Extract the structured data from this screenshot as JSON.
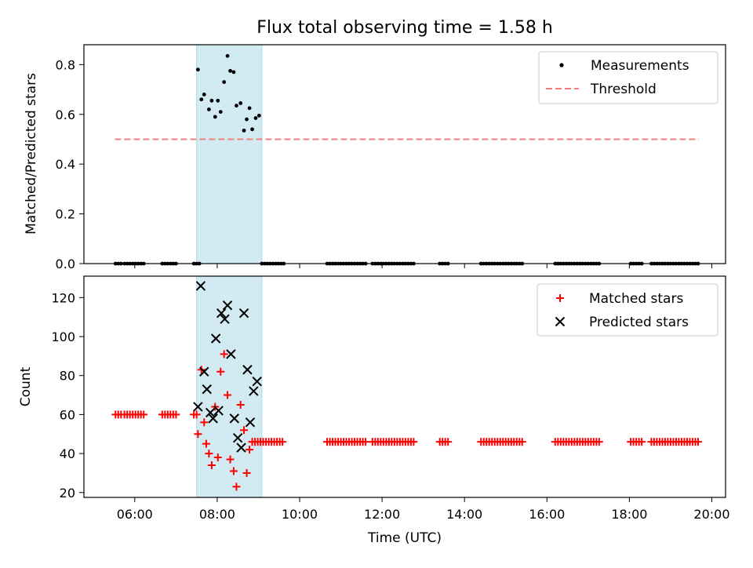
{
  "chart_data": {
    "title": "Flux total observing time = 1.58 h",
    "highlight_span": [
      "07:30",
      "09:05"
    ],
    "colors": {
      "highlight": "#add8e6",
      "threshold": "#f08080",
      "measurements": "#000000",
      "matched": "#ff0000",
      "predicted": "#000000"
    },
    "x_axis": {
      "label": "Time (UTC)",
      "range": [
        "04:46",
        "20:20"
      ],
      "ticks": [
        "06:00",
        "08:00",
        "10:00",
        "12:00",
        "14:00",
        "16:00",
        "18:00",
        "20:00"
      ]
    },
    "top": {
      "type": "scatter",
      "ylabel": "Matched/Predicted stars",
      "ylim": [
        0,
        0.88
      ],
      "yticks": [
        "0.0",
        "0.2",
        "0.4",
        "0.6",
        "0.8"
      ],
      "threshold": {
        "name": "Threshold",
        "value": 0.5,
        "x_range": [
          "05:31",
          "19:41"
        ]
      },
      "measurements": {
        "name": "Measurements",
        "points": [
          [
            "05:32",
            0
          ],
          [
            "05:36",
            0
          ],
          [
            "05:40",
            0
          ],
          [
            "05:45",
            0
          ],
          [
            "05:49",
            0
          ],
          [
            "05:53",
            0
          ],
          [
            "05:57",
            0
          ],
          [
            "06:01",
            0
          ],
          [
            "06:05",
            0
          ],
          [
            "06:09",
            0
          ],
          [
            "06:13",
            0
          ],
          [
            "06:40",
            0
          ],
          [
            "06:44",
            0
          ],
          [
            "06:48",
            0
          ],
          [
            "06:52",
            0
          ],
          [
            "06:56",
            0
          ],
          [
            "07:00",
            0
          ],
          [
            "07:26",
            0
          ],
          [
            "07:30",
            0
          ],
          [
            "07:34",
            0
          ],
          [
            "07:32",
            0.78
          ],
          [
            "07:37",
            0.66
          ],
          [
            "07:41",
            0.68
          ],
          [
            "07:48",
            0.62
          ],
          [
            "07:52",
            0.655
          ],
          [
            "07:57",
            0.59
          ],
          [
            "08:01",
            0.655
          ],
          [
            "08:05",
            0.61
          ],
          [
            "08:10",
            0.73
          ],
          [
            "08:15",
            0.835
          ],
          [
            "08:19",
            0.775
          ],
          [
            "08:24",
            0.77
          ],
          [
            "08:28",
            0.635
          ],
          [
            "08:34",
            0.645
          ],
          [
            "08:39",
            0.535
          ],
          [
            "08:43",
            0.58
          ],
          [
            "08:47",
            0.625
          ],
          [
            "08:51",
            0.54
          ],
          [
            "08:56",
            0.585
          ],
          [
            "09:01",
            0.595
          ],
          [
            "09:05",
            0
          ],
          [
            "09:09",
            0
          ],
          [
            "09:13",
            0
          ],
          [
            "09:17",
            0
          ],
          [
            "09:21",
            0
          ],
          [
            "09:25",
            0
          ],
          [
            "09:29",
            0
          ],
          [
            "09:33",
            0
          ],
          [
            "09:37",
            0
          ],
          [
            "10:40",
            0
          ],
          [
            "10:44",
            0
          ],
          [
            "10:48",
            0
          ],
          [
            "10:52",
            0
          ],
          [
            "10:56",
            0
          ],
          [
            "11:00",
            0
          ],
          [
            "11:04",
            0
          ],
          [
            "11:08",
            0
          ],
          [
            "11:12",
            0
          ],
          [
            "11:16",
            0
          ],
          [
            "11:20",
            0
          ],
          [
            "11:24",
            0
          ],
          [
            "11:28",
            0
          ],
          [
            "11:32",
            0
          ],
          [
            "11:36",
            0
          ],
          [
            "11:46",
            0
          ],
          [
            "11:50",
            0
          ],
          [
            "11:54",
            0
          ],
          [
            "11:58",
            0
          ],
          [
            "12:02",
            0
          ],
          [
            "12:06",
            0
          ],
          [
            "12:10",
            0
          ],
          [
            "12:14",
            0
          ],
          [
            "12:18",
            0
          ],
          [
            "12:22",
            0
          ],
          [
            "12:26",
            0
          ],
          [
            "12:30",
            0
          ],
          [
            "12:34",
            0
          ],
          [
            "12:38",
            0
          ],
          [
            "12:42",
            0
          ],
          [
            "12:46",
            0
          ],
          [
            "13:24",
            0
          ],
          [
            "13:28",
            0
          ],
          [
            "13:32",
            0
          ],
          [
            "13:36",
            0
          ],
          [
            "14:24",
            0
          ],
          [
            "14:28",
            0
          ],
          [
            "14:32",
            0
          ],
          [
            "14:36",
            0
          ],
          [
            "14:40",
            0
          ],
          [
            "14:44",
            0
          ],
          [
            "14:48",
            0
          ],
          [
            "14:52",
            0
          ],
          [
            "14:56",
            0
          ],
          [
            "15:00",
            0
          ],
          [
            "15:04",
            0
          ],
          [
            "15:08",
            0
          ],
          [
            "15:12",
            0
          ],
          [
            "15:16",
            0
          ],
          [
            "15:20",
            0
          ],
          [
            "15:24",
            0
          ],
          [
            "16:12",
            0
          ],
          [
            "16:16",
            0
          ],
          [
            "16:20",
            0
          ],
          [
            "16:24",
            0
          ],
          [
            "16:28",
            0
          ],
          [
            "16:32",
            0
          ],
          [
            "16:36",
            0
          ],
          [
            "16:40",
            0
          ],
          [
            "16:44",
            0
          ],
          [
            "16:48",
            0
          ],
          [
            "16:52",
            0
          ],
          [
            "16:56",
            0
          ],
          [
            "17:00",
            0
          ],
          [
            "17:04",
            0
          ],
          [
            "17:08",
            0
          ],
          [
            "17:12",
            0
          ],
          [
            "17:16",
            0
          ],
          [
            "18:02",
            0
          ],
          [
            "18:06",
            0
          ],
          [
            "18:10",
            0
          ],
          [
            "18:14",
            0
          ],
          [
            "18:18",
            0
          ],
          [
            "18:32",
            0
          ],
          [
            "18:36",
            0
          ],
          [
            "18:40",
            0
          ],
          [
            "18:44",
            0
          ],
          [
            "18:48",
            0
          ],
          [
            "18:52",
            0
          ],
          [
            "18:56",
            0
          ],
          [
            "19:00",
            0
          ],
          [
            "19:04",
            0
          ],
          [
            "19:08",
            0
          ],
          [
            "19:12",
            0
          ],
          [
            "19:16",
            0
          ],
          [
            "19:20",
            0
          ],
          [
            "19:24",
            0
          ],
          [
            "19:28",
            0
          ],
          [
            "19:32",
            0
          ],
          [
            "19:36",
            0
          ],
          [
            "19:40",
            0
          ]
        ]
      },
      "legend_position": "top-right"
    },
    "bottom": {
      "type": "scatter",
      "ylabel": "Count",
      "ylim": [
        17.5,
        131
      ],
      "yticks": [
        "20",
        "40",
        "60",
        "80",
        "100",
        "120"
      ],
      "matched": {
        "name": "Matched stars",
        "points": [
          [
            "05:32",
            60
          ],
          [
            "05:36",
            60
          ],
          [
            "05:40",
            60
          ],
          [
            "05:45",
            60
          ],
          [
            "05:49",
            60
          ],
          [
            "05:53",
            60
          ],
          [
            "05:57",
            60
          ],
          [
            "06:01",
            60
          ],
          [
            "06:05",
            60
          ],
          [
            "06:09",
            60
          ],
          [
            "06:13",
            60
          ],
          [
            "06:40",
            60
          ],
          [
            "06:44",
            60
          ],
          [
            "06:48",
            60
          ],
          [
            "06:52",
            60
          ],
          [
            "06:56",
            60
          ],
          [
            "07:00",
            60
          ],
          [
            "07:26",
            60
          ],
          [
            "07:30",
            60
          ],
          [
            "07:32",
            50
          ],
          [
            "07:37",
            83
          ],
          [
            "07:41",
            56
          ],
          [
            "07:44",
            45
          ],
          [
            "07:48",
            40
          ],
          [
            "07:52",
            34
          ],
          [
            "07:57",
            64
          ],
          [
            "08:01",
            38
          ],
          [
            "08:05",
            82
          ],
          [
            "08:10",
            91
          ],
          [
            "08:15",
            70
          ],
          [
            "08:19",
            37
          ],
          [
            "08:24",
            31
          ],
          [
            "08:28",
            23
          ],
          [
            "08:34",
            65
          ],
          [
            "08:39",
            52
          ],
          [
            "08:43",
            30
          ],
          [
            "08:47",
            42
          ],
          [
            "08:51",
            46
          ],
          [
            "08:55",
            46
          ],
          [
            "08:59",
            46
          ],
          [
            "09:03",
            46
          ],
          [
            "09:07",
            46
          ],
          [
            "09:11",
            46
          ],
          [
            "09:15",
            46
          ],
          [
            "09:19",
            46
          ],
          [
            "09:23",
            46
          ],
          [
            "09:27",
            46
          ],
          [
            "09:31",
            46
          ],
          [
            "09:35",
            46
          ],
          [
            "10:40",
            46
          ],
          [
            "10:44",
            46
          ],
          [
            "10:48",
            46
          ],
          [
            "10:52",
            46
          ],
          [
            "10:56",
            46
          ],
          [
            "11:00",
            46
          ],
          [
            "11:04",
            46
          ],
          [
            "11:08",
            46
          ],
          [
            "11:12",
            46
          ],
          [
            "11:16",
            46
          ],
          [
            "11:20",
            46
          ],
          [
            "11:24",
            46
          ],
          [
            "11:28",
            46
          ],
          [
            "11:32",
            46
          ],
          [
            "11:36",
            46
          ],
          [
            "11:46",
            46
          ],
          [
            "11:50",
            46
          ],
          [
            "11:54",
            46
          ],
          [
            "11:58",
            46
          ],
          [
            "12:02",
            46
          ],
          [
            "12:06",
            46
          ],
          [
            "12:10",
            46
          ],
          [
            "12:14",
            46
          ],
          [
            "12:18",
            46
          ],
          [
            "12:22",
            46
          ],
          [
            "12:26",
            46
          ],
          [
            "12:30",
            46
          ],
          [
            "12:34",
            46
          ],
          [
            "12:38",
            46
          ],
          [
            "12:42",
            46
          ],
          [
            "12:46",
            46
          ],
          [
            "13:24",
            46
          ],
          [
            "13:28",
            46
          ],
          [
            "13:32",
            46
          ],
          [
            "13:36",
            46
          ],
          [
            "14:24",
            46
          ],
          [
            "14:28",
            46
          ],
          [
            "14:32",
            46
          ],
          [
            "14:36",
            46
          ],
          [
            "14:40",
            46
          ],
          [
            "14:44",
            46
          ],
          [
            "14:48",
            46
          ],
          [
            "14:52",
            46
          ],
          [
            "14:56",
            46
          ],
          [
            "15:00",
            46
          ],
          [
            "15:04",
            46
          ],
          [
            "15:08",
            46
          ],
          [
            "15:12",
            46
          ],
          [
            "15:16",
            46
          ],
          [
            "15:20",
            46
          ],
          [
            "15:24",
            46
          ],
          [
            "16:12",
            46
          ],
          [
            "16:16",
            46
          ],
          [
            "16:20",
            46
          ],
          [
            "16:24",
            46
          ],
          [
            "16:28",
            46
          ],
          [
            "16:32",
            46
          ],
          [
            "16:36",
            46
          ],
          [
            "16:40",
            46
          ],
          [
            "16:44",
            46
          ],
          [
            "16:48",
            46
          ],
          [
            "16:52",
            46
          ],
          [
            "16:56",
            46
          ],
          [
            "17:00",
            46
          ],
          [
            "17:04",
            46
          ],
          [
            "17:08",
            46
          ],
          [
            "17:12",
            46
          ],
          [
            "17:16",
            46
          ],
          [
            "18:02",
            46
          ],
          [
            "18:06",
            46
          ],
          [
            "18:10",
            46
          ],
          [
            "18:14",
            46
          ],
          [
            "18:18",
            46
          ],
          [
            "18:32",
            46
          ],
          [
            "18:36",
            46
          ],
          [
            "18:40",
            46
          ],
          [
            "18:44",
            46
          ],
          [
            "18:48",
            46
          ],
          [
            "18:52",
            46
          ],
          [
            "18:56",
            46
          ],
          [
            "19:00",
            46
          ],
          [
            "19:04",
            46
          ],
          [
            "19:08",
            46
          ],
          [
            "19:12",
            46
          ],
          [
            "19:16",
            46
          ],
          [
            "19:20",
            46
          ],
          [
            "19:24",
            46
          ],
          [
            "19:28",
            46
          ],
          [
            "19:32",
            46
          ],
          [
            "19:36",
            46
          ],
          [
            "19:40",
            46
          ]
        ]
      },
      "predicted": {
        "name": "Predicted stars",
        "points": [
          [
            "07:32",
            64
          ],
          [
            "07:36",
            126
          ],
          [
            "07:41",
            82
          ],
          [
            "07:45",
            73
          ],
          [
            "07:50",
            61
          ],
          [
            "07:54",
            58
          ],
          [
            "07:58",
            99
          ],
          [
            "08:02",
            62
          ],
          [
            "08:06",
            112
          ],
          [
            "08:11",
            109
          ],
          [
            "08:15",
            116
          ],
          [
            "08:20",
            91
          ],
          [
            "08:25",
            58
          ],
          [
            "08:30",
            48
          ],
          [
            "08:35",
            43
          ],
          [
            "08:39",
            112
          ],
          [
            "08:44",
            83
          ],
          [
            "08:48",
            56
          ],
          [
            "08:53",
            72
          ],
          [
            "08:58",
            77
          ]
        ]
      },
      "legend_position": "top-right"
    }
  }
}
